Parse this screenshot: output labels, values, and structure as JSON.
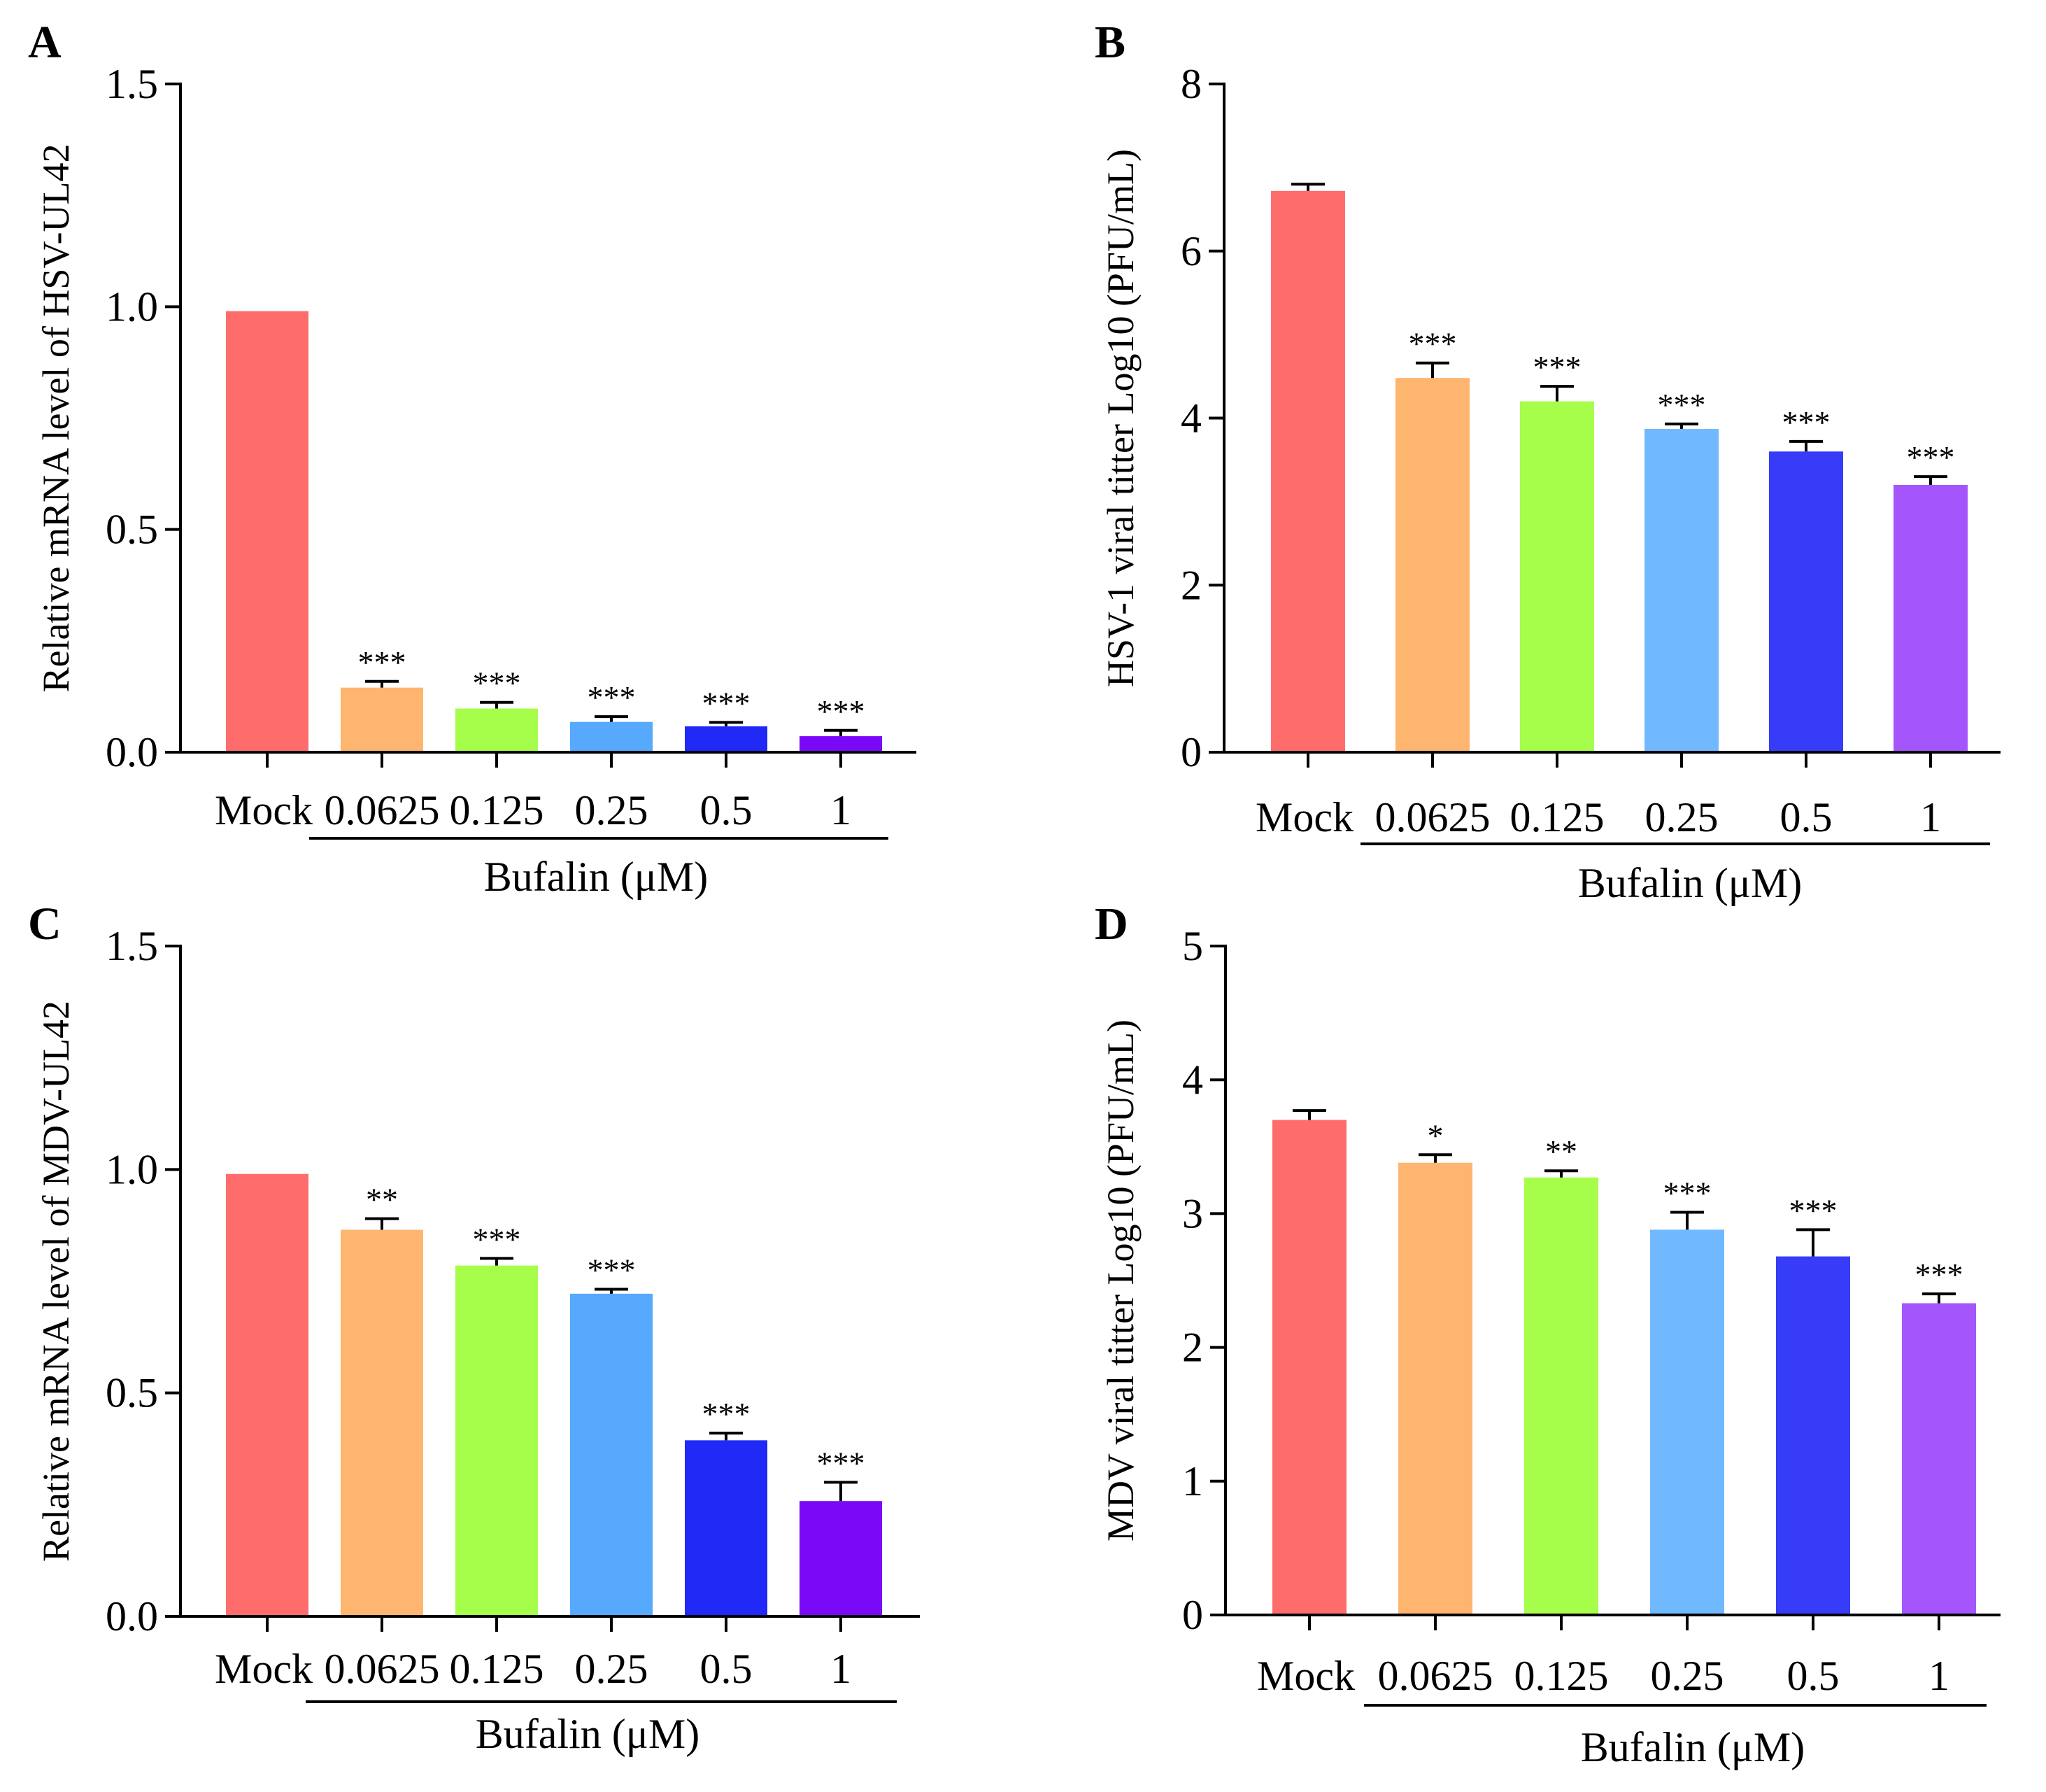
{
  "chart_data": [
    {
      "panel": "A",
      "type": "bar",
      "categories": [
        "Mock",
        "0.0625",
        "0.125",
        "0.25",
        "0.5",
        "1"
      ],
      "values": [
        0.99,
        0.145,
        0.098,
        0.068,
        0.058,
        0.036
      ],
      "errors": [
        0.0,
        0.014,
        0.014,
        0.012,
        0.009,
        0.013
      ],
      "significance": [
        "",
        "***",
        "***",
        "***",
        "***",
        "***"
      ],
      "colors": [
        "#fe6d6c",
        "#fdb56f",
        "#a6fd4a",
        "#56a9fc",
        "#2029f6",
        "#7a09f8"
      ],
      "ylabel": "Relative  mRNA level of HSV-UL42",
      "xlabel": "Bufalin (μM)",
      "ylim": [
        0,
        1.5
      ],
      "yticks": [
        "0.0",
        "0.5",
        "1.0",
        "1.5"
      ]
    },
    {
      "panel": "B",
      "type": "bar",
      "categories": [
        "Mock",
        "0.0625",
        "0.125",
        "0.25",
        "0.5",
        "1"
      ],
      "values": [
        6.72,
        4.48,
        4.2,
        3.87,
        3.6,
        3.2
      ],
      "errors": [
        0.08,
        0.18,
        0.18,
        0.06,
        0.12,
        0.1
      ],
      "significance": [
        "",
        "***",
        "***",
        "***",
        "***",
        "***"
      ],
      "colors": [
        "#fe6d6c",
        "#fdb56f",
        "#a6fd4a",
        "#71b9fe",
        "#363cf7",
        "#a456fc"
      ],
      "ylabel": "HSV-1 viral titter Log10 (PFU/mL)",
      "xlabel": "Bufalin (μM)",
      "ylim": [
        0,
        8
      ],
      "yticks": [
        "0",
        "2",
        "4",
        "6",
        "8"
      ]
    },
    {
      "panel": "C",
      "type": "bar",
      "categories": [
        "Mock",
        "0.0625",
        "0.125",
        "0.25",
        "0.5",
        "1"
      ],
      "values": [
        0.99,
        0.865,
        0.785,
        0.722,
        0.394,
        0.258
      ],
      "errors": [
        0.0,
        0.025,
        0.016,
        0.01,
        0.016,
        0.042
      ],
      "significance": [
        "",
        "**",
        "***",
        "***",
        "***",
        "***"
      ],
      "colors": [
        "#fe6d6c",
        "#fdb56f",
        "#a6fd4a",
        "#56a9fc",
        "#2029f6",
        "#7a09f8"
      ],
      "ylabel": "Relative  mRNA level of MDV-UL42",
      "xlabel": "Bufalin (μM)",
      "ylim": [
        0,
        1.5
      ],
      "yticks": [
        "0.0",
        "0.5",
        "1.0",
        "1.5"
      ]
    },
    {
      "panel": "D",
      "type": "bar",
      "categories": [
        "Mock",
        "0.0625",
        "0.125",
        "0.25",
        "0.5",
        "1"
      ],
      "values": [
        3.7,
        3.38,
        3.27,
        2.88,
        2.68,
        2.33
      ],
      "errors": [
        0.07,
        0.06,
        0.05,
        0.13,
        0.2,
        0.07
      ],
      "significance": [
        "",
        "*",
        "**",
        "***",
        "***",
        "***"
      ],
      "colors": [
        "#fe6d6c",
        "#fdb56f",
        "#a6fd4a",
        "#71b9fe",
        "#363cf7",
        "#a456fc"
      ],
      "ylabel": "MDV viral titter Log10 (PFU/mL)",
      "xlabel": "Bufalin (μM)",
      "ylim": [
        0,
        5
      ],
      "yticks": [
        "0",
        "1",
        "2",
        "3",
        "4",
        "5"
      ]
    }
  ]
}
